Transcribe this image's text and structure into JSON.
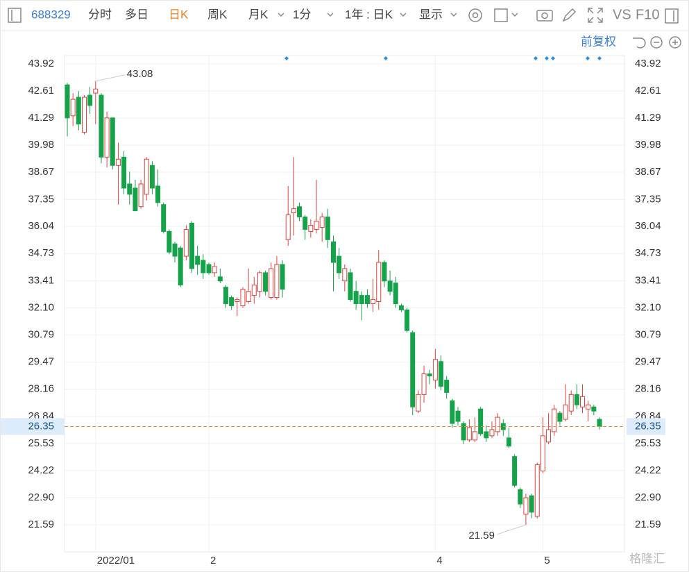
{
  "toolbar": {
    "code": "688329",
    "tabs": [
      "分时",
      "多日",
      "日K",
      "周K",
      "月K"
    ],
    "period": "1分",
    "range": "1年 : 日K",
    "display": "显示",
    "vs": "VS",
    "f10": "F10",
    "adjust": "前复权"
  },
  "watermark": "格隆汇",
  "chart_data": {
    "type": "candlestick",
    "categories": [
      null,
      null,
      null,
      null,
      null,
      "2022/01",
      null,
      null,
      null,
      null,
      null,
      null,
      null,
      null,
      null,
      null,
      null,
      null,
      null,
      null,
      null,
      null,
      null,
      null,
      null,
      "2",
      null,
      null,
      null,
      null,
      null,
      null,
      null,
      null,
      null,
      null,
      null,
      null,
      null,
      null,
      null,
      null,
      null,
      null,
      null,
      null,
      null,
      null,
      null,
      null,
      null,
      null,
      null,
      null,
      null,
      null,
      null,
      null,
      null,
      null,
      null,
      null,
      null,
      null,
      null,
      "4",
      null,
      null,
      null,
      null,
      null,
      null,
      null,
      null,
      null,
      null,
      null,
      null,
      null,
      null,
      null,
      null,
      null,
      null,
      "5",
      null,
      null,
      null,
      null,
      null,
      null,
      null,
      null,
      null,
      null
    ],
    "open": [
      42.9,
      41.4,
      42.3,
      40.6,
      42.4,
      42.5,
      42.4,
      39.4,
      41.3,
      39.0,
      39.4,
      38.1,
      37.9,
      37.0,
      37.6,
      39.0,
      38.0,
      37.1,
      35.8,
      35.2,
      35.0,
      34.6,
      36.2,
      34.6,
      34.4,
      34.2,
      33.8,
      33.6,
      33.1,
      32.6,
      32.4,
      32.2,
      32.4,
      32.7,
      32.9,
      33.8,
      32.6,
      32.6,
      34.2,
      35.4,
      36.7,
      37.0,
      36.5,
      35.8,
      35.9,
      36.0,
      36.5,
      35.3,
      34.6,
      33.4,
      33.8,
      32.9,
      32.7,
      32.7,
      32.3,
      32.4,
      34.3,
      33.4,
      33.3,
      32.2,
      32.0,
      30.9,
      27.1,
      27.9,
      28.9,
      28.6,
      29.5,
      28.6,
      27.6,
      27.1,
      26.5,
      25.7,
      25.7,
      27.2,
      26.1,
      25.9,
      26.1,
      26.5,
      25.8,
      24.9,
      23.3,
      22.1,
      23.0,
      22.0,
      24.2,
      25.6,
      26.1,
      27.0,
      26.7,
      27.1,
      27.9,
      27.3,
      27.2,
      27.3,
      26.7
    ],
    "high": [
      43.0,
      42.5,
      42.6,
      42.4,
      42.8,
      43.08,
      42.5,
      41.6,
      41.3,
      40.1,
      39.7,
      38.7,
      38.3,
      38.3,
      39.4,
      39.2,
      38.8,
      37.2,
      35.9,
      35.3,
      35.1,
      36.1,
      36.3,
      35.1,
      34.7,
      34.3,
      34.3,
      34.0,
      33.2,
      32.7,
      32.6,
      33.1,
      34.0,
      33.6,
      33.9,
      33.9,
      34.3,
      34.6,
      34.4,
      38.0,
      39.4,
      37.2,
      36.6,
      36.4,
      38.3,
      36.7,
      36.9,
      35.6,
      35.0,
      34.2,
      34.0,
      33.4,
      32.9,
      33.0,
      33.5,
      34.9,
      34.4,
      33.9,
      33.6,
      32.3,
      32.1,
      31.0,
      28.1,
      29.3,
      29.1,
      30.1,
      29.8,
      28.8,
      27.7,
      27.3,
      26.6,
      26.7,
      26.8,
      27.3,
      26.4,
      26.6,
      27.0,
      26.7,
      26.3,
      25.0,
      23.4,
      23.1,
      23.1,
      24.6,
      26.8,
      27.0,
      27.4,
      27.1,
      28.4,
      28.1,
      28.4,
      28.4,
      27.6,
      27.4,
      26.8
    ],
    "low": [
      40.4,
      40.9,
      40.7,
      40.5,
      41.5,
      41.0,
      39.1,
      38.9,
      38.8,
      37.1,
      37.6,
      37.1,
      36.8,
      36.9,
      37.3,
      37.6,
      37.0,
      35.7,
      34.7,
      34.3,
      33.1,
      34.4,
      33.8,
      33.7,
      33.5,
      33.7,
      33.6,
      33.3,
      32.1,
      32.0,
      31.7,
      32.1,
      32.3,
      32.3,
      32.6,
      32.7,
      32.5,
      32.5,
      32.6,
      35.1,
      35.6,
      36.3,
      35.4,
      35.5,
      35.7,
      35.3,
      35.0,
      32.9,
      33.5,
      32.9,
      32.4,
      32.0,
      31.5,
      32.1,
      31.9,
      32.0,
      33.1,
      32.7,
      32.1,
      31.9,
      30.9,
      26.9,
      27.0,
      27.5,
      28.4,
      28.2,
      28.1,
      27.7,
      26.3,
      26.4,
      25.5,
      25.6,
      25.6,
      25.9,
      25.6,
      25.8,
      25.9,
      25.9,
      25.3,
      23.4,
      22.4,
      21.59,
      21.9,
      21.9,
      24.1,
      25.5,
      25.9,
      26.4,
      26.6,
      26.9,
      27.2,
      27.0,
      26.6,
      26.9,
      26.2
    ],
    "close": [
      41.3,
      42.2,
      41.0,
      42.3,
      41.9,
      42.7,
      39.4,
      41.3,
      39.0,
      39.3,
      37.9,
      37.6,
      36.8,
      38.1,
      39.3,
      37.9,
      37.2,
      35.8,
      34.8,
      34.6,
      33.2,
      35.9,
      34.0,
      34.2,
      33.8,
      33.8,
      34.1,
      33.4,
      32.3,
      32.2,
      32.5,
      33.0,
      32.9,
      33.2,
      33.8,
      32.9,
      34.0,
      34.2,
      33.0,
      36.6,
      36.9,
      36.5,
      35.9,
      36.1,
      36.3,
      36.5,
      35.4,
      34.3,
      33.8,
      34.0,
      32.5,
      32.3,
      32.3,
      32.3,
      32.5,
      34.3,
      33.4,
      32.9,
      32.3,
      32.0,
      31.0,
      27.3,
      27.9,
      28.9,
      28.8,
      29.6,
      28.3,
      28.0,
      26.5,
      26.6,
      25.7,
      26.3,
      26.1,
      26.0,
      25.8,
      26.2,
      26.8,
      26.2,
      25.4,
      23.5,
      22.6,
      22.9,
      22.2,
      24.5,
      25.9,
      26.2,
      27.2,
      26.6,
      27.4,
      27.9,
      27.4,
      27.8,
      27.4,
      27.1,
      26.35
    ],
    "up_color": "#e0403a",
    "down_color": "#15a34a",
    "ylim": [
      20.28,
      44.32
    ],
    "yticks": [
      43.92,
      42.61,
      41.29,
      39.98,
      38.67,
      37.35,
      36.04,
      34.73,
      33.41,
      {
        "value": 32.1,
        "label": "32.10"
      },
      30.79,
      29.47,
      28.16,
      26.84,
      25.53,
      24.22,
      {
        "value": 22.9,
        "label": "22.90"
      },
      21.59
    ],
    "grid": true,
    "annotations": [
      {
        "value": 43.08
      },
      {
        "value": 21.59
      }
    ],
    "last_price": 26.35,
    "last_price_color": "#f08a3c"
  }
}
